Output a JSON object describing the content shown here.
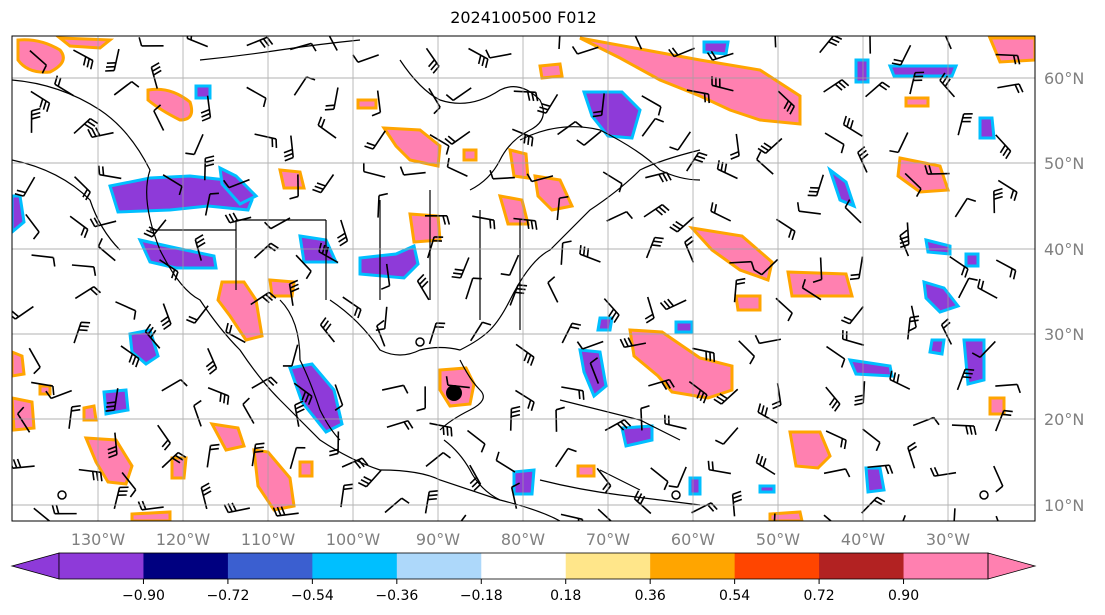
{
  "title": "2024100500 F012",
  "lat_labels": [
    "60°N",
    "50°N",
    "40°N",
    "30°N",
    "20°N",
    "10°N"
  ],
  "lon_labels": [
    "130°W",
    "120°W",
    "110°W",
    "100°W",
    "90°W",
    "80°W",
    "70°W",
    "60°W",
    "50°W",
    "40°W",
    "30°W"
  ],
  "colorbar": {
    "ticks": [
      "−0.90",
      "−0.72",
      "−0.54",
      "−0.36",
      "−0.18",
      "0.18",
      "0.36",
      "0.54",
      "0.72",
      "0.90"
    ],
    "colors": [
      "#8e3ad9",
      "#000080",
      "#3b5fd0",
      "#00bfff",
      "#add8fa",
      "#ffffff",
      "#ffe68a",
      "#ffa500",
      "#ff4500",
      "#b22222"
    ],
    "under_color": "#8e3ad9",
    "over_color": "#ff80b0"
  },
  "field_colors": {
    "positive_fill": "#ff80b0",
    "positive_edge": "#ffa500",
    "positive_inner": "#b22222",
    "negative_fill": "#8e3ad9",
    "negative_edge": "#00bfff",
    "negative_inner": "#3b5fd0"
  },
  "storm_marker": {
    "lat": 23,
    "lon": -86
  },
  "grid": true
}
